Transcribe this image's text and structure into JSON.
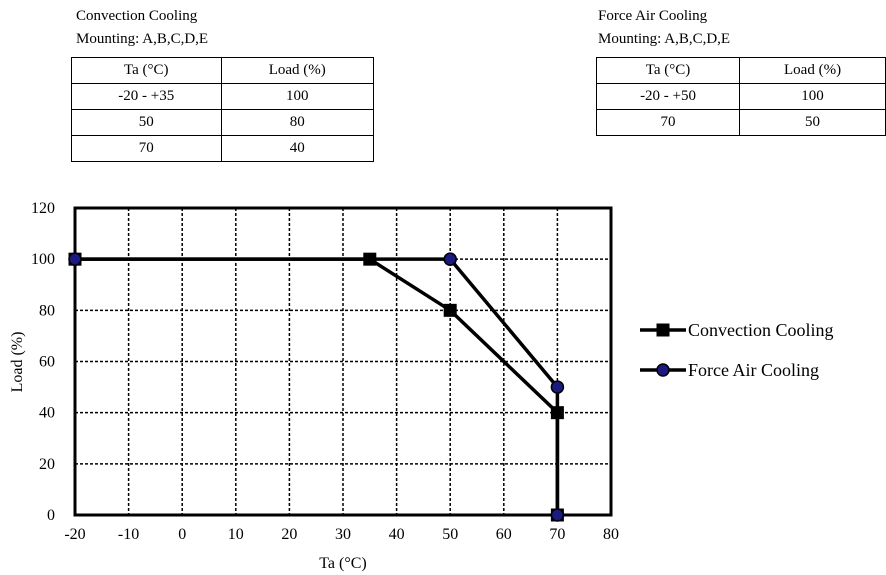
{
  "tables": [
    {
      "title": "Convection Cooling",
      "mounting": "Mounting: A,B,C,D,E",
      "headers": [
        "Ta (°C)",
        "Load (%)"
      ],
      "rows": [
        [
          "-20 - +35",
          "100"
        ],
        [
          "50",
          "80"
        ],
        [
          "70",
          "40"
        ]
      ]
    },
    {
      "title": "Force Air Cooling",
      "mounting": "Mounting: A,B,C,D,E",
      "headers": [
        "Ta (°C)",
        "Load (%)"
      ],
      "rows": [
        [
          "-20 - +50",
          "100"
        ],
        [
          "70",
          "50"
        ]
      ]
    }
  ],
  "chart_data": {
    "type": "line",
    "xlabel": "Ta (°C)",
    "ylabel": "Load (%)",
    "xlim": [
      -20,
      80
    ],
    "ylim": [
      0,
      120
    ],
    "xticks": [
      -20,
      -10,
      0,
      10,
      20,
      30,
      40,
      50,
      60,
      70,
      80
    ],
    "yticks": [
      0,
      20,
      40,
      60,
      80,
      100,
      120
    ],
    "grid": true,
    "legend_position": "right",
    "series": [
      {
        "name": "Convection Cooling",
        "marker": "square",
        "line_color": "#000000",
        "marker_fill": "#000000",
        "x": [
          -20,
          35,
          50,
          70,
          70
        ],
        "y": [
          100,
          100,
          80,
          40,
          0
        ]
      },
      {
        "name": "Force Air Cooling",
        "marker": "circle",
        "line_color": "#000000",
        "marker_fill": "#1a1a80",
        "x": [
          -20,
          50,
          70,
          70
        ],
        "y": [
          100,
          100,
          50,
          0
        ]
      }
    ]
  }
}
